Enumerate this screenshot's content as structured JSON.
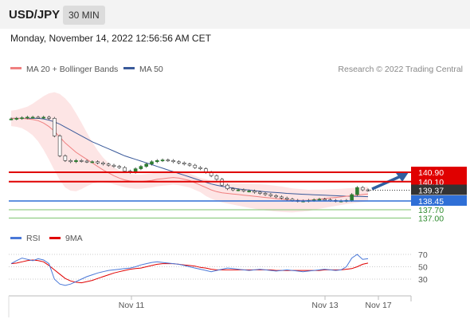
{
  "header": {
    "pair": "USD/JPY",
    "timeframe": "30 MIN",
    "datetime": "Monday, November 14, 2022 12:56:56 AM CET"
  },
  "legend": {
    "ma20": "MA 20 + Bollinger Bands",
    "ma50": "MA 50",
    "credit": "Research © 2022 Trading Central"
  },
  "rsi_legend": {
    "rsi": "RSI",
    "ma": "9MA"
  },
  "colors": {
    "ma20": "#f08080",
    "ma50": "#3a5a9a",
    "bands": "#fde0e0",
    "resistance": "#e00000",
    "current": "#333333",
    "pivot": "#2f6fd6",
    "support": "#7cc36e",
    "support_text": "#2e8b2e",
    "rsi": "#4a78d8",
    "rsi_ma": "#e00000",
    "candle": "#2e7d32"
  },
  "chart_data": {
    "type": "candlestick",
    "y_range": [
      136.5,
      143.0
    ],
    "x_labels": [
      "Nov 11",
      "Nov 13",
      "Nov 17"
    ],
    "levels": [
      {
        "name": "resistance-2",
        "label": "140.90",
        "value": 140.9,
        "kind": "resistance"
      },
      {
        "name": "resistance-1",
        "label": "140.10",
        "value": 140.1,
        "kind": "resistance"
      },
      {
        "name": "current-price",
        "label": "139.37",
        "value": 139.37,
        "kind": "current"
      },
      {
        "name": "pivot",
        "label": "138.45",
        "value": 138.45,
        "kind": "pivot"
      },
      {
        "name": "support-1",
        "label": "137.70",
        "value": 137.7,
        "kind": "support"
      },
      {
        "name": "support-2",
        "label": "137.00",
        "value": 137.0,
        "kind": "support"
      }
    ],
    "close": [
      145.45,
      145.5,
      145.55,
      145.6,
      145.6,
      145.58,
      145.6,
      145.5,
      144.0,
      142.3,
      141.9,
      141.8,
      141.9,
      141.85,
      141.8,
      141.8,
      141.7,
      141.6,
      141.5,
      141.4,
      141.3,
      141.0,
      140.9,
      141.2,
      141.4,
      141.6,
      141.8,
      141.9,
      141.95,
      141.9,
      141.8,
      141.7,
      141.6,
      141.5,
      141.3,
      141.2,
      140.9,
      140.6,
      140.3,
      139.8,
      139.5,
      139.4,
      139.4,
      139.3,
      139.3,
      139.2,
      139.1,
      139.0,
      138.9,
      138.8,
      138.7,
      138.6,
      138.5,
      138.45,
      138.45,
      138.5,
      138.55,
      138.6,
      138.55,
      138.5,
      138.45,
      138.45,
      138.5,
      139.0,
      139.6,
      139.4,
      139.37
    ],
    "ma20": [
      145.5,
      145.5,
      145.5,
      145.45,
      145.4,
      145.3,
      145.1,
      144.8,
      144.4,
      143.9,
      143.4,
      143.0,
      142.6,
      142.3,
      142.0,
      141.7,
      141.4,
      141.1,
      140.85,
      140.6,
      140.4,
      140.25,
      140.15,
      140.1,
      140.1,
      140.15,
      140.2,
      140.3,
      140.35,
      140.4,
      140.45,
      140.4,
      140.3,
      140.2,
      140.0,
      139.8,
      139.6,
      139.4,
      139.25,
      139.15,
      139.1,
      139.05,
      139.0,
      138.95,
      138.9,
      138.85,
      138.8,
      138.75,
      138.7,
      138.65,
      138.6,
      138.55,
      138.5,
      138.5,
      138.5,
      138.5,
      138.55,
      138.6,
      138.65,
      138.7,
      138.75,
      138.8,
      138.85,
      138.9,
      138.95,
      139.0,
      139.05
    ],
    "ma50": [
      145.5,
      145.5,
      145.5,
      145.5,
      145.5,
      145.5,
      145.45,
      145.35,
      145.2,
      145.0,
      144.75,
      144.5,
      144.25,
      144.0,
      143.75,
      143.5,
      143.3,
      143.1,
      142.9,
      142.7,
      142.5,
      142.3,
      142.15,
      142.0,
      141.85,
      141.7,
      141.55,
      141.4,
      141.25,
      141.1,
      140.95,
      140.8,
      140.65,
      140.5,
      140.35,
      140.2,
      140.05,
      139.9,
      139.8,
      139.7,
      139.62,
      139.55,
      139.48,
      139.42,
      139.38,
      139.33,
      139.28,
      139.23,
      139.2,
      139.17,
      139.14,
      139.1,
      139.07,
      139.04,
      139.02,
      139.0,
      138.98,
      138.96,
      138.94,
      138.92,
      138.9,
      138.88,
      138.86,
      138.85,
      138.84,
      138.83,
      138.82
    ],
    "rsi": {
      "levels": [
        70,
        50,
        30
      ],
      "rsi": [
        55,
        60,
        64,
        62,
        60,
        63,
        61,
        55,
        30,
        22,
        20,
        22,
        26,
        30,
        34,
        37,
        40,
        42,
        44,
        45,
        46,
        47,
        48,
        50,
        53,
        55,
        57,
        58,
        57,
        56,
        55,
        54,
        52,
        50,
        48,
        46,
        44,
        42,
        44,
        46,
        48,
        47,
        46,
        45,
        44,
        45,
        46,
        45,
        44,
        43,
        44,
        45,
        44,
        43,
        42,
        43,
        44,
        45,
        46,
        45,
        44,
        45,
        50,
        64,
        70,
        62,
        63
      ],
      "ma": [
        55,
        56,
        58,
        60,
        61,
        60,
        58,
        52,
        45,
        38,
        31,
        27,
        25,
        24,
        26,
        28,
        31,
        34,
        37,
        40,
        42,
        44,
        46,
        47,
        48,
        50,
        52,
        54,
        55,
        55,
        55,
        54,
        53,
        52,
        51,
        49,
        48,
        46,
        45,
        45,
        45,
        45,
        45,
        45,
        45,
        45,
        45,
        45,
        45,
        44,
        44,
        44,
        44,
        44,
        44,
        44,
        44,
        44,
        45,
        45,
        45,
        45,
        46,
        47,
        50,
        54,
        56
      ]
    }
  }
}
